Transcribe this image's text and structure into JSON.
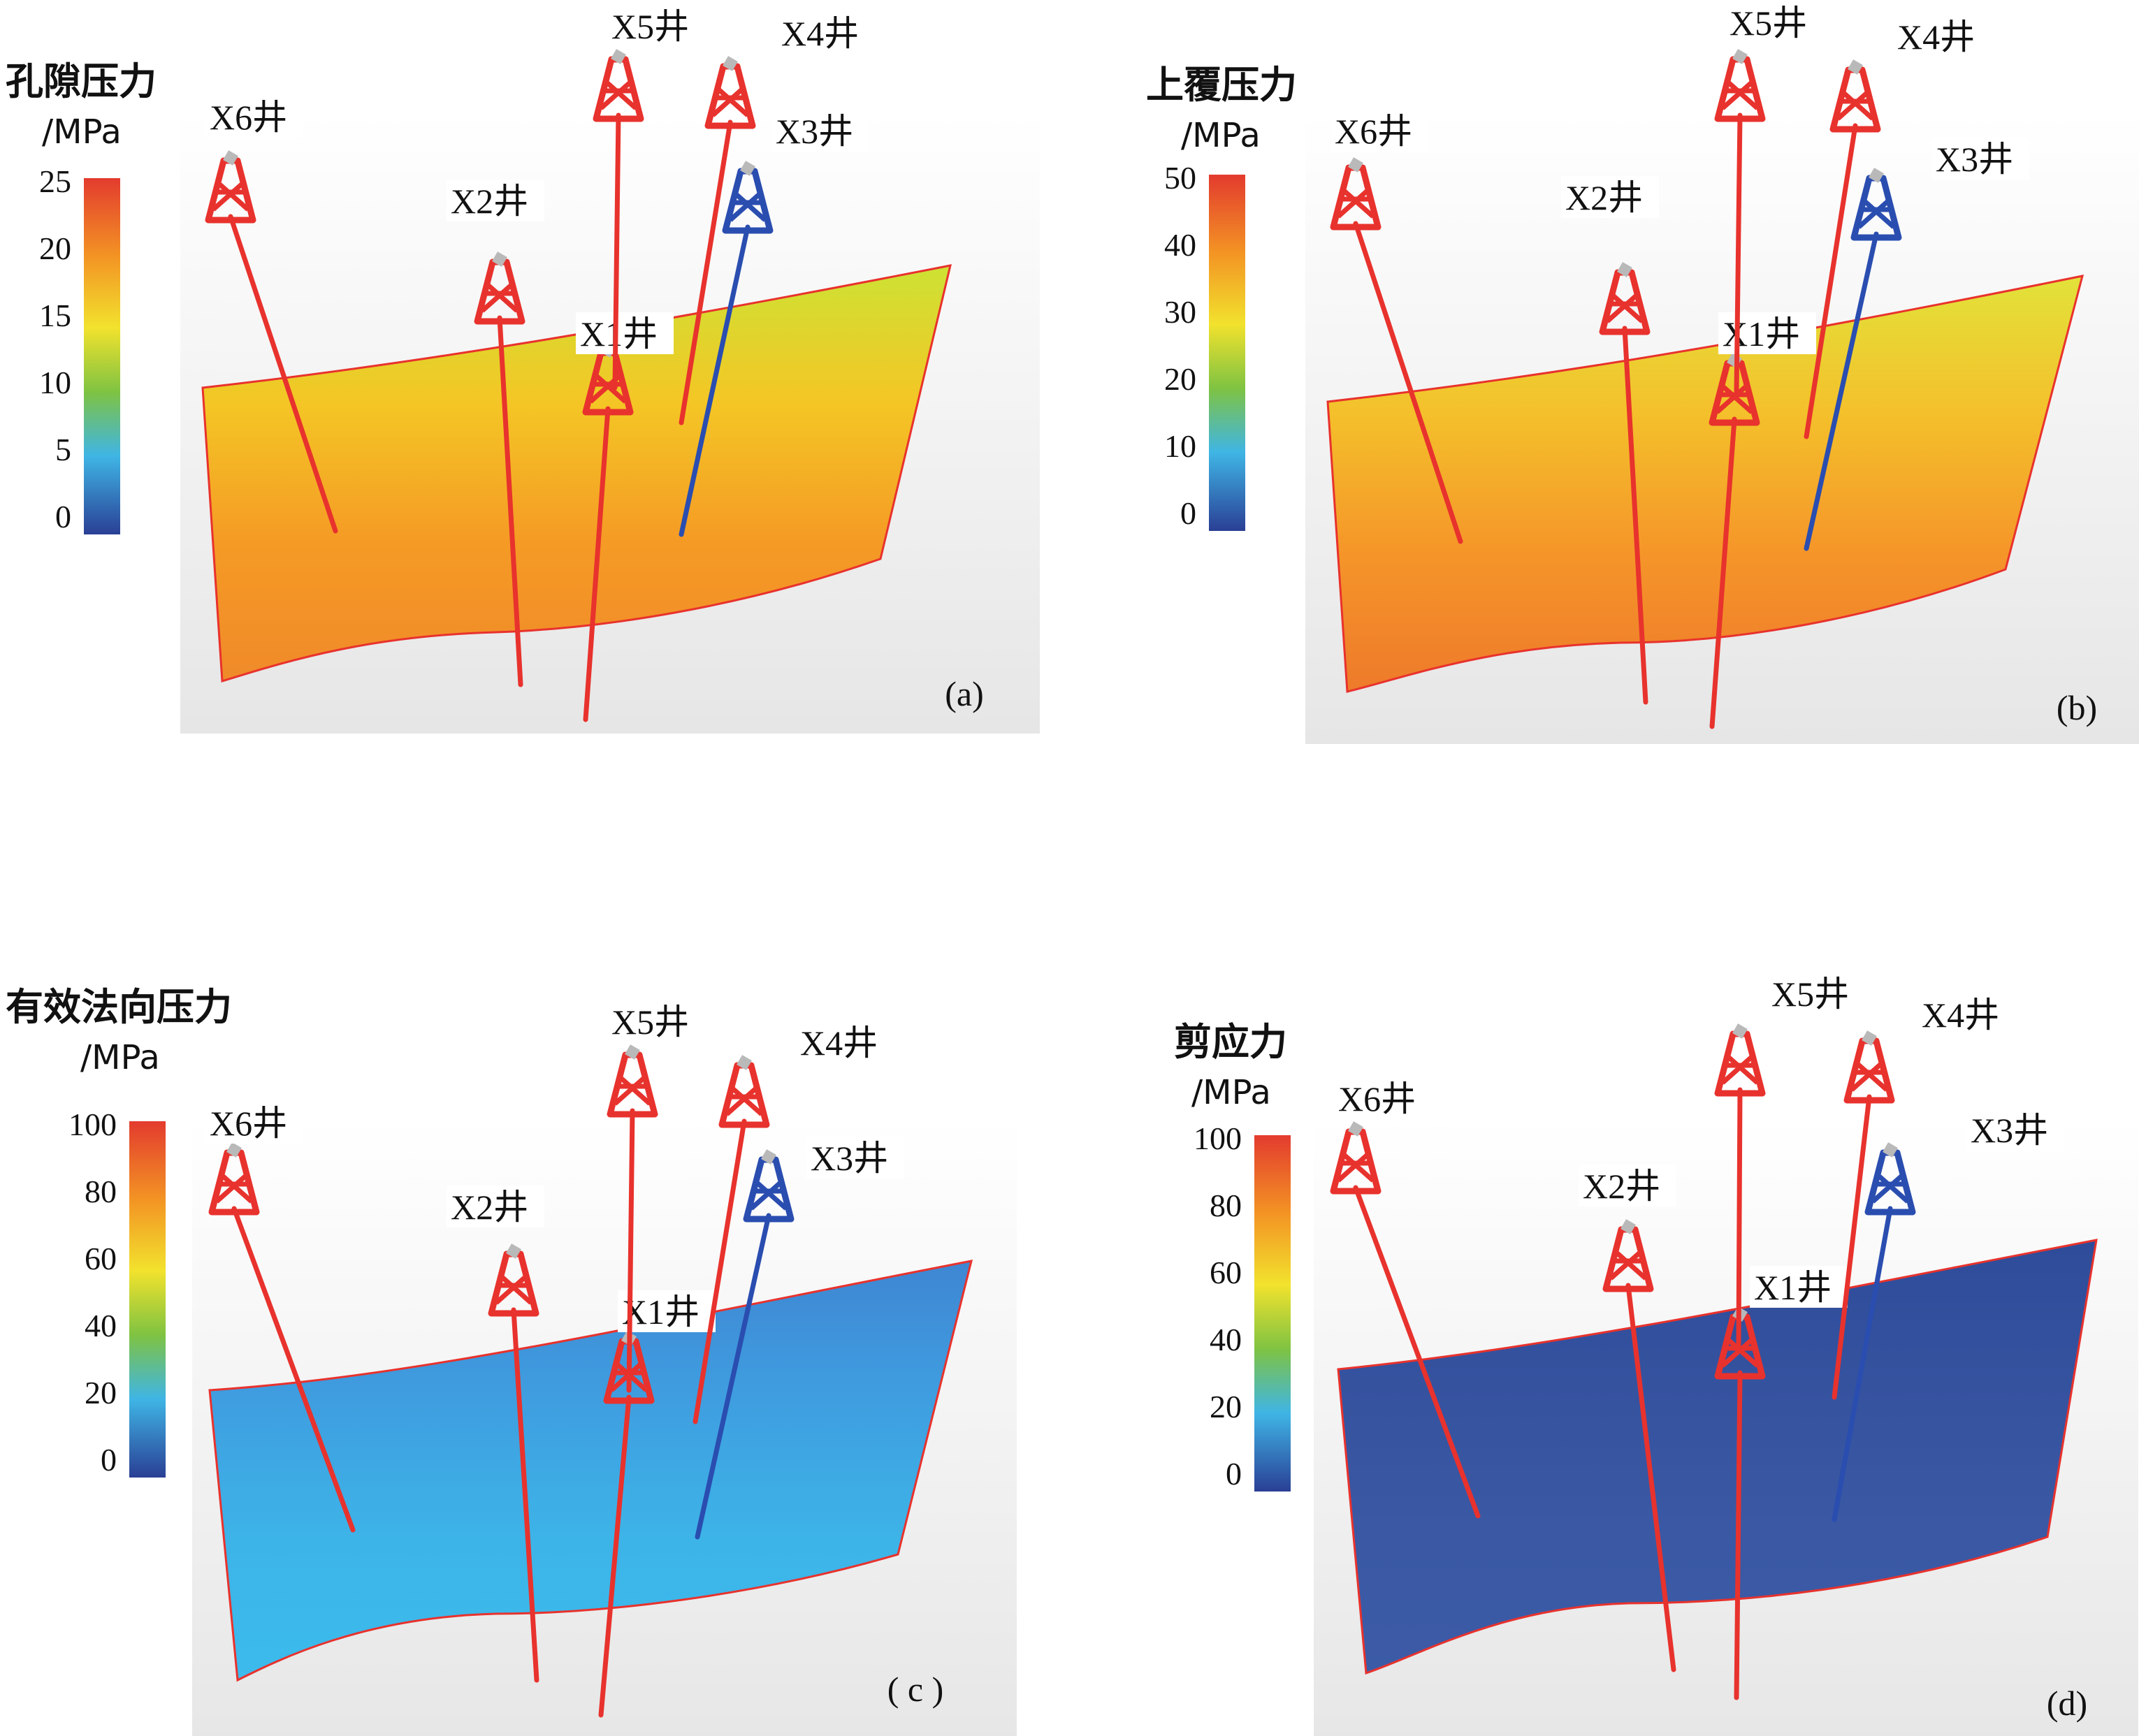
{
  "panels": [
    {
      "id": "a",
      "panel_label": "(a)",
      "colorbar": {
        "title": "孔隙压力",
        "unit": "/MPa",
        "ticks": [
          "25",
          "20",
          "15",
          "10",
          "5",
          "0"
        ]
      },
      "surface_colors": [
        "#cde234",
        "#f4c625",
        "#f59a25",
        "#f08a2a"
      ],
      "wells": {
        "X6": "X6井",
        "X2": "X2井",
        "X1": "X1井",
        "X5": "X5井",
        "X4": "X4井",
        "X3": "X3井"
      }
    },
    {
      "id": "b",
      "panel_label": "(b)",
      "colorbar": {
        "title": "上覆压力",
        "unit": "/MPa",
        "ticks": [
          "50",
          "40",
          "30",
          "20",
          "10",
          "0"
        ]
      },
      "surface_colors": [
        "#e2e23a",
        "#f4c02b",
        "#f59529",
        "#ee7a2a"
      ],
      "wells": {
        "X6": "X6井",
        "X2": "X2井",
        "X1": "X1井",
        "X5": "X5井",
        "X4": "X4井",
        "X3": "X3井"
      }
    },
    {
      "id": "c",
      "panel_label": "( c )",
      "colorbar": {
        "title": "有效法向压力",
        "unit": "/MPa",
        "ticks": [
          "100",
          "80",
          "60",
          "40",
          "20",
          "0"
        ]
      },
      "surface_colors": [
        "#3f86d2",
        "#3f9ee0",
        "#3db4e8",
        "#3cbbec"
      ],
      "wells": {
        "X6": "X6井",
        "X2": "X2井",
        "X1": "X1井",
        "X5": "X5井",
        "X4": "X4井",
        "X3": "X3井"
      }
    },
    {
      "id": "d",
      "panel_label": "(d)",
      "colorbar": {
        "title": "剪应力",
        "unit": "/MPa",
        "ticks": [
          "100",
          "80",
          "60",
          "40",
          "20",
          "0"
        ]
      },
      "surface_colors": [
        "#2e4c9a",
        "#35529f",
        "#3a58a4",
        "#3c5ba6"
      ],
      "wells": {
        "X6": "X6井",
        "X2": "X2井",
        "X1": "X1井",
        "X5": "X5井",
        "X4": "X4井",
        "X3": "X3井"
      }
    }
  ],
  "colors": {
    "well_red": "#e8322d",
    "well_blue": "#2a4db0"
  }
}
